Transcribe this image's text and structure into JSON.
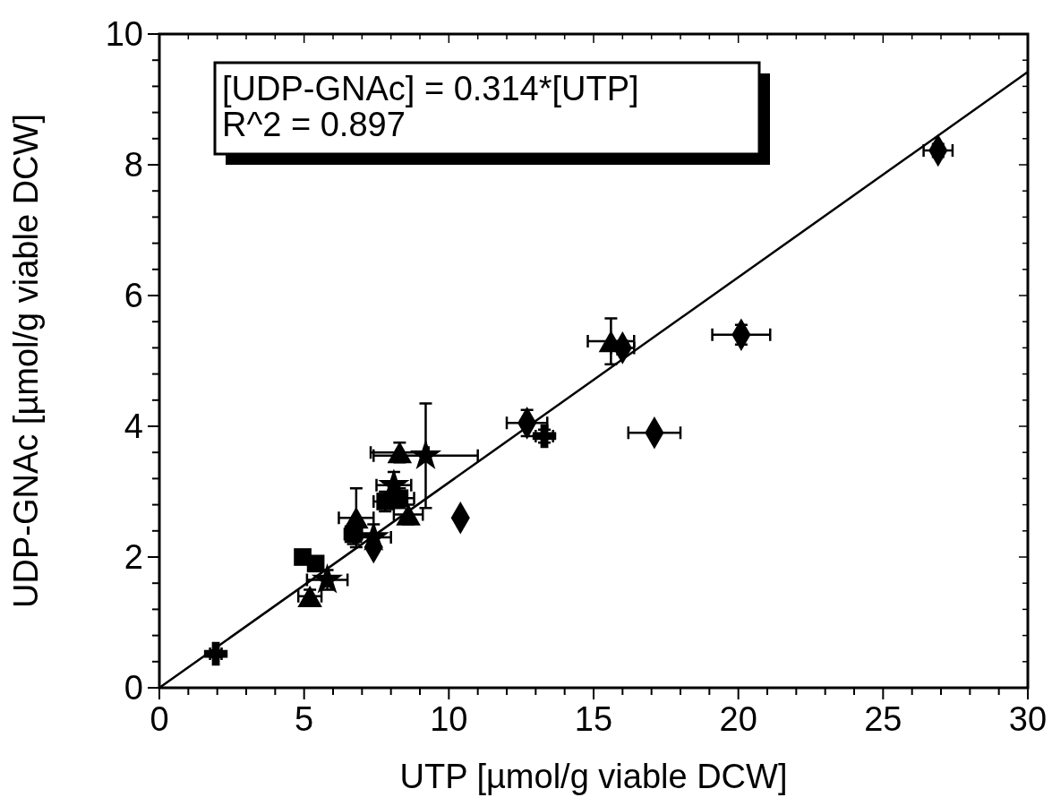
{
  "chart_data": {
    "type": "scatter",
    "xlabel": "UTP [µmol/g viable DCW]",
    "ylabel": "UDP-GNAc [µmol/g viable DCW]",
    "annotations": [
      "[UDP-GNAc] = 0.314*[UTP]",
      "R^2 = 0.897"
    ],
    "xlim": [
      0,
      30
    ],
    "ylim": [
      0,
      10
    ],
    "xticks": [
      0,
      {
        "value": 1,
        "label": null
      },
      {
        "value": 2,
        "label": null
      },
      {
        "value": 3,
        "label": null
      },
      {
        "value": 4,
        "label": null
      },
      5,
      {
        "value": 6,
        "label": null
      },
      {
        "value": 7,
        "label": null
      },
      {
        "value": 8,
        "label": null
      },
      {
        "value": 9,
        "label": null
      },
      10,
      {
        "value": 11,
        "label": null
      },
      {
        "value": 12,
        "label": null
      },
      {
        "value": 13,
        "label": null
      },
      {
        "value": 14,
        "label": null
      },
      15,
      {
        "value": 16,
        "label": null
      },
      {
        "value": 17,
        "label": null
      },
      {
        "value": 18,
        "label": null
      },
      {
        "value": 19,
        "label": null
      },
      20,
      {
        "value": 21,
        "label": null
      },
      {
        "value": 22,
        "label": null
      },
      {
        "value": 23,
        "label": null
      },
      {
        "value": 24,
        "label": null
      },
      25,
      {
        "value": 26,
        "label": null
      },
      {
        "value": 27,
        "label": null
      },
      {
        "value": 28,
        "label": null
      },
      {
        "value": 29,
        "label": null
      },
      30
    ],
    "yticks": [
      0,
      {
        "value": 0.4,
        "label": null
      },
      {
        "value": 0.8,
        "label": null
      },
      {
        "value": 1.2,
        "label": null
      },
      {
        "value": 1.6,
        "label": null
      },
      2,
      {
        "value": 2.4,
        "label": null
      },
      {
        "value": 2.8,
        "label": null
      },
      {
        "value": 3.2,
        "label": null
      },
      {
        "value": 3.6,
        "label": null
      },
      4,
      {
        "value": 4.4,
        "label": null
      },
      {
        "value": 4.8,
        "label": null
      },
      {
        "value": 5.2,
        "label": null
      },
      {
        "value": 5.6,
        "label": null
      },
      6,
      {
        "value": 6.4,
        "label": null
      },
      {
        "value": 6.8,
        "label": null
      },
      {
        "value": 7.2,
        "label": null
      },
      {
        "value": 7.6,
        "label": null
      },
      8,
      {
        "value": 8.4,
        "label": null
      },
      {
        "value": 8.8,
        "label": null
      },
      {
        "value": 9.2,
        "label": null
      },
      {
        "value": 9.6,
        "label": null
      },
      10
    ],
    "grid": false,
    "series": [
      {
        "marker": "diamond",
        "color": "#000000",
        "x": [
          26.9,
          20.1,
          17.1,
          12.7,
          10.4,
          16.0,
          7.4
        ],
        "values": [
          8.22,
          5.4,
          3.9,
          4.05,
          2.6,
          5.2,
          2.15
        ],
        "xerrors": [
          0.5,
          1.0,
          0.9,
          0.7,
          null,
          0.4,
          null
        ],
        "errors": [
          0.1,
          0.15,
          null,
          0.2,
          null,
          0.1,
          null
        ]
      },
      {
        "marker": "triangle",
        "color": "#000000",
        "x": [
          15.6,
          8.3,
          5.2,
          8.6,
          6.8
        ],
        "values": [
          5.3,
          3.6,
          1.4,
          2.65,
          2.6
        ],
        "xerrors": [
          0.8,
          1.0,
          0.4,
          0.5,
          0.6
        ],
        "errors": [
          0.35,
          0.15,
          0.1,
          0.15,
          0.45
        ]
      },
      {
        "marker": "star",
        "color": "#000000",
        "x": [
          9.2,
          5.8,
          7.4,
          8.1
        ],
        "values": [
          3.55,
          1.65,
          2.3,
          3.1
        ],
        "xerrors": [
          1.8,
          0.7,
          0.6,
          0.6
        ],
        "errors": [
          0.8,
          0.15,
          0.2,
          0.2
        ]
      },
      {
        "marker": "square",
        "color": "#000000",
        "x": [
          4.95,
          5.4,
          7.8,
          8.3,
          6.7
        ],
        "values": [
          2.0,
          1.9,
          2.85,
          2.9,
          2.35
        ],
        "xerrors": [
          null,
          null,
          0.4,
          0.5,
          0.3
        ],
        "errors": [
          null,
          null,
          0.15,
          0.15,
          0.15
        ]
      },
      {
        "marker": "cross",
        "color": "#000000",
        "x": [
          13.3,
          1.95
        ],
        "values": [
          3.85,
          0.52
        ],
        "xerrors": [
          0.3,
          0.2
        ],
        "errors": [
          0.1,
          0.05
        ]
      },
      {
        "type": "line",
        "marker": "none",
        "color": "#000000",
        "x": [
          0,
          30
        ],
        "values": [
          0,
          9.42
        ]
      }
    ]
  }
}
